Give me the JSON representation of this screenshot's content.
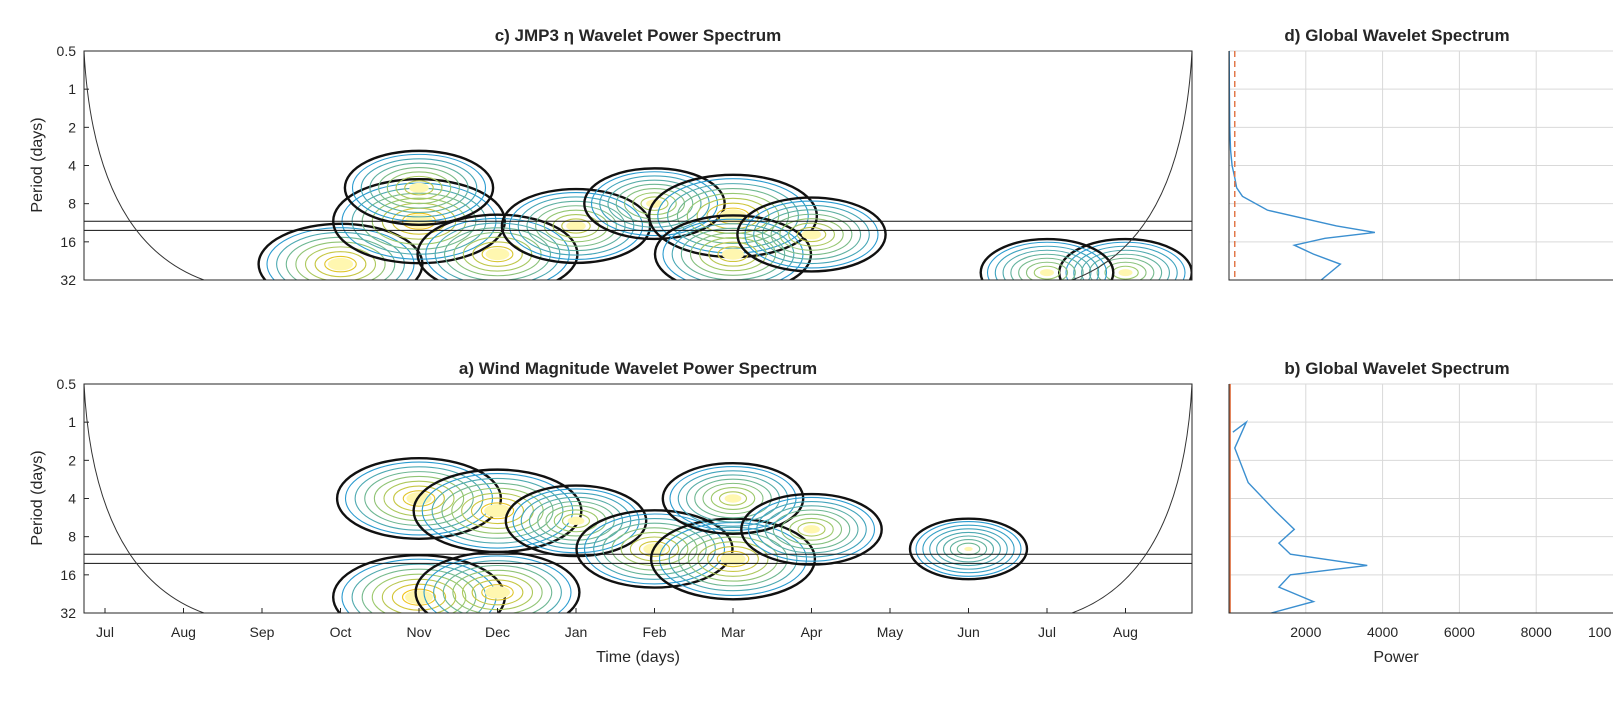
{
  "colors": {
    "contour_low": "#2a9bd0",
    "contour_mid": "#9cc96b",
    "contour_high": "#f2c41a",
    "peak": "#fff7b0",
    "significance": "#111111",
    "cone": "#333333",
    "global_line": "#3b8fd0",
    "global_significance": "#e07040",
    "grid": "#d9d9d9"
  },
  "chart_data": [
    {
      "panel": "c",
      "type": "heatmap",
      "title": "c) JMP3 η Wavelet Power Spectrum",
      "ylabel": "Period (days)",
      "xlabel": "",
      "y_scale": "log2, reversed",
      "yticks": [
        "0.5",
        "1",
        "2",
        "4",
        "8",
        "16",
        "32"
      ],
      "ylim": [
        0.5,
        32
      ],
      "xticks": [],
      "reference_periods": [
        11,
        13
      ],
      "hotspots": [
        {
          "month": "Oct",
          "period": 24,
          "power": 0.9
        },
        {
          "month": "Nov",
          "period": 11,
          "power": 1.0
        },
        {
          "month": "Nov",
          "period": 6,
          "power": 0.7
        },
        {
          "month": "Dec",
          "period": 20,
          "power": 0.85
        },
        {
          "month": "Jan",
          "period": 12,
          "power": 0.7
        },
        {
          "month": "Feb",
          "period": 8,
          "power": 0.6
        },
        {
          "month": "Mar",
          "period": 10,
          "power": 0.95
        },
        {
          "month": "Mar",
          "period": 20,
          "power": 0.8
        },
        {
          "month": "Apr",
          "period": 14,
          "power": 0.7
        },
        {
          "month": "Aug",
          "period": 28,
          "power": 0.5
        },
        {
          "month": "Jul",
          "period": 28,
          "power": 0.5
        }
      ]
    },
    {
      "panel": "d",
      "type": "line",
      "title": "d) Global Wavelet Spectrum",
      "xlabel": "",
      "xlim": [
        0,
        10000
      ],
      "ylim": [
        0.5,
        32
      ],
      "series": [
        {
          "x": [
            5,
            10,
            20,
            40,
            80,
            150,
            200,
            350,
            1000,
            2800,
            3800,
            2500,
            1700,
            2200,
            2900,
            2400
          ],
          "y": [
            0.5,
            1,
            2,
            3,
            4,
            5,
            6,
            7,
            9,
            12,
            13.5,
            15,
            17,
            20,
            24,
            32
          ]
        },
        {
          "x": [
            150,
            150
          ],
          "y": [
            0.5,
            32
          ],
          "dashed": true
        }
      ]
    },
    {
      "panel": "a",
      "type": "heatmap",
      "title": "a) Wind Magnitude Wavelet Power Spectrum",
      "ylabel": "Period (days)",
      "xlabel": "Time (days)",
      "y_scale": "log2, reversed",
      "yticks": [
        "0.5",
        "1",
        "2",
        "4",
        "8",
        "16",
        "32"
      ],
      "ylim": [
        0.5,
        32
      ],
      "xticks": [
        "Jul",
        "Aug",
        "Sep",
        "Oct",
        "Nov",
        "Dec",
        "Jan",
        "Feb",
        "Mar",
        "Apr",
        "May",
        "Jun",
        "Jul",
        "Aug"
      ],
      "reference_periods": [
        11,
        13
      ],
      "hotspots": [
        {
          "month": "Nov",
          "period": 24,
          "power": 1.0
        },
        {
          "month": "Nov",
          "period": 4,
          "power": 0.9
        },
        {
          "month": "Dec",
          "period": 5,
          "power": 0.95
        },
        {
          "month": "Dec",
          "period": 22,
          "power": 0.9
        },
        {
          "month": "Jan",
          "period": 6,
          "power": 0.6
        },
        {
          "month": "Feb",
          "period": 10,
          "power": 0.8
        },
        {
          "month": "Mar",
          "period": 12,
          "power": 0.9
        },
        {
          "month": "Mar",
          "period": 4,
          "power": 0.6
        },
        {
          "month": "Apr",
          "period": 7,
          "power": 0.6
        },
        {
          "month": "Jun",
          "period": 10,
          "power": 0.3
        }
      ]
    },
    {
      "panel": "b",
      "type": "line",
      "title": "b) Global Wavelet Spectrum",
      "xlabel": "Power",
      "xticks": [
        "2000",
        "4000",
        "6000",
        "8000",
        "100"
      ],
      "xlim": [
        0,
        10000
      ],
      "ylim": [
        0.5,
        32
      ],
      "series": [
        {
          "x": [
            100,
            450,
            150,
            500,
            1200,
            1700,
            1300,
            1600,
            3600,
            1600,
            1300,
            2200,
            1100
          ],
          "y": [
            1.2,
            1.0,
            1.6,
            3,
            5,
            7,
            9,
            11,
            13.5,
            16,
            20,
            26,
            32
          ]
        },
        {
          "x": [
            30,
            30
          ],
          "y": [
            0.5,
            32
          ],
          "dashed": false
        }
      ]
    }
  ]
}
